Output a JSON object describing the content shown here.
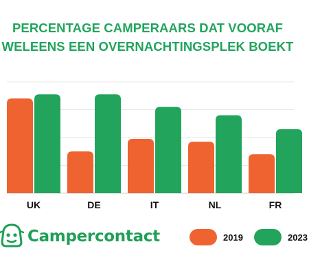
{
  "title_lines": [
    "PERCENTAGE CAMPERAARS DAT VOORAF",
    "WELEENS EEN OVERNACHTINGSPLEK BOEKT"
  ],
  "brand": {
    "name": "Campercontact",
    "logo_icon": "camper-mascot-icon",
    "color": "#1f9f57"
  },
  "colors": {
    "series_2019": "#ee6330",
    "series_2023": "#22a45d",
    "title": "#22a45d",
    "grid": "#e6e6e6"
  },
  "legend": [
    "2019",
    "2023"
  ],
  "chart_data": {
    "type": "bar",
    "title": "PERCENTAGE CAMPERAARS DAT VOORAF WELEENS EEN OVERNACHTINGSPLEK BOEKT",
    "categories": [
      "UK",
      "DE",
      "IT",
      "NL",
      "FR"
    ],
    "series": [
      {
        "name": "2019",
        "color": "#ee6330",
        "values": [
          68,
          30,
          39,
          37,
          28
        ]
      },
      {
        "name": "2023",
        "color": "#22a45d",
        "values": [
          71,
          71,
          62,
          56,
          46
        ]
      }
    ],
    "ylim": [
      0,
      80
    ],
    "ytick_step": 20,
    "y_ticks_visible": false,
    "grid": true,
    "legend_position": "bottom-right",
    "xlabel": "",
    "ylabel": ""
  }
}
